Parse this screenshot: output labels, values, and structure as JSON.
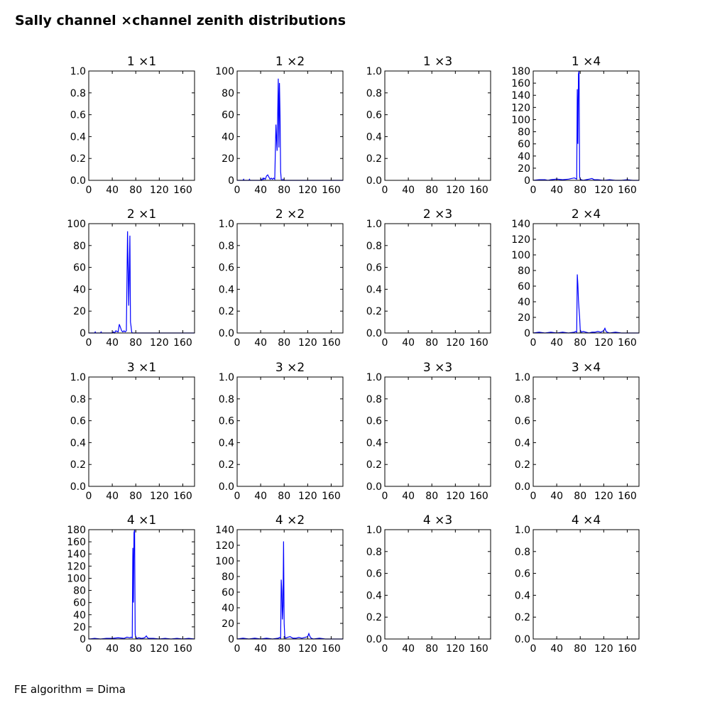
{
  "figure": {
    "title": "Sally channel ×channel zenith distributions",
    "footer": "FE algorithm = Dima",
    "line_color": "#0000ff"
  },
  "chart_data": [
    {
      "type": "line",
      "title": "1 ×1",
      "xlim": [
        0,
        180
      ],
      "ylim": [
        0,
        1.0
      ],
      "xticks": [
        "0",
        "40",
        "80",
        "120",
        "160"
      ],
      "yticks": [
        "0.0",
        "0.2",
        "0.4",
        "0.6",
        "0.8",
        "1.0"
      ],
      "series": [
        {
          "x": [],
          "y": []
        }
      ]
    },
    {
      "type": "line",
      "title": "1 ×2",
      "xlim": [
        0,
        180
      ],
      "ylim": [
        0,
        100
      ],
      "xticks": [
        "0",
        "40",
        "80",
        "120",
        "160"
      ],
      "yticks": [
        "0",
        "20",
        "40",
        "60",
        "80",
        "100"
      ],
      "series": [
        {
          "x": [
            0,
            10,
            11,
            12,
            20,
            21,
            22,
            30,
            40,
            41,
            42,
            44,
            45,
            46,
            48,
            50,
            52,
            54,
            56,
            58,
            60,
            62,
            64,
            66,
            68,
            70,
            71,
            72,
            73,
            74,
            75,
            76,
            77,
            78,
            79,
            80,
            81,
            82,
            83,
            84,
            86,
            90,
            100,
            102,
            104,
            110,
            120,
            130,
            140,
            150,
            160,
            170,
            180
          ],
          "y": [
            0,
            0,
            1,
            0,
            0,
            1,
            0,
            0,
            0,
            1,
            0,
            2,
            1,
            2,
            1,
            4,
            5,
            3,
            1,
            2,
            1,
            2,
            1,
            51,
            27,
            93,
            30,
            89,
            60,
            8,
            1,
            0,
            0,
            1,
            0,
            0,
            0,
            0,
            0,
            0,
            0,
            0,
            0,
            0,
            0,
            0,
            0,
            0,
            0,
            0,
            0,
            0,
            0
          ]
        }
      ]
    },
    {
      "type": "line",
      "title": "1 ×3",
      "xlim": [
        0,
        180
      ],
      "ylim": [
        0,
        1.0
      ],
      "xticks": [
        "0",
        "40",
        "80",
        "120",
        "160"
      ],
      "yticks": [
        "0.0",
        "0.2",
        "0.4",
        "0.6",
        "0.8",
        "1.0"
      ],
      "series": [
        {
          "x": [],
          "y": []
        }
      ]
    },
    {
      "type": "line",
      "title": "1 ×4",
      "xlim": [
        0,
        180
      ],
      "ylim": [
        0,
        180
      ],
      "xticks": [
        "0",
        "40",
        "80",
        "120",
        "160"
      ],
      "yticks": [
        "0",
        "20",
        "40",
        "60",
        "80",
        "100",
        "120",
        "140",
        "160",
        "180"
      ],
      "series": [
        {
          "x": [
            0,
            10,
            20,
            25,
            30,
            40,
            50,
            60,
            65,
            70,
            72,
            74,
            75,
            76,
            77,
            78,
            79,
            80,
            82,
            85,
            90,
            95,
            100,
            102,
            104,
            110,
            120,
            130,
            140,
            150,
            160,
            170,
            180
          ],
          "y": [
            0,
            1,
            1,
            0,
            1,
            2,
            1,
            2,
            3,
            4,
            3,
            2,
            150,
            60,
            175,
            180,
            6,
            2,
            1,
            0,
            1,
            2,
            3,
            2,
            1,
            1,
            0,
            1,
            0,
            0,
            1,
            0,
            0
          ]
        }
      ]
    },
    {
      "type": "line",
      "title": "2 ×1",
      "xlim": [
        0,
        180
      ],
      "ylim": [
        0,
        100
      ],
      "xticks": [
        "0",
        "40",
        "80",
        "120",
        "160"
      ],
      "yticks": [
        "0",
        "20",
        "40",
        "60",
        "80",
        "100"
      ],
      "series": [
        {
          "x": [
            0,
            10,
            11,
            12,
            20,
            21,
            22,
            30,
            40,
            42,
            44,
            46,
            50,
            52,
            54,
            56,
            58,
            60,
            62,
            64,
            66,
            68,
            70,
            71,
            72,
            73,
            74,
            75,
            76,
            78,
            80,
            90,
            100,
            110,
            120,
            130,
            140,
            150,
            160,
            170,
            180
          ],
          "y": [
            0,
            0,
            1,
            0,
            0,
            1,
            0,
            0,
            0,
            1,
            0,
            2,
            1,
            8,
            5,
            2,
            1,
            2,
            1,
            2,
            93,
            25,
            89,
            10,
            6,
            1,
            0,
            0,
            0,
            0,
            0,
            0,
            0,
            0,
            0,
            0,
            0,
            0,
            0,
            0,
            0
          ]
        }
      ]
    },
    {
      "type": "line",
      "title": "2 ×2",
      "xlim": [
        0,
        180
      ],
      "ylim": [
        0,
        1.0
      ],
      "xticks": [
        "0",
        "40",
        "80",
        "120",
        "160"
      ],
      "yticks": [
        "0.0",
        "0.2",
        "0.4",
        "0.6",
        "0.8",
        "1.0"
      ],
      "series": [
        {
          "x": [],
          "y": []
        }
      ]
    },
    {
      "type": "line",
      "title": "2 ×3",
      "xlim": [
        0,
        180
      ],
      "ylim": [
        0,
        1.0
      ],
      "xticks": [
        "0",
        "40",
        "80",
        "120",
        "160"
      ],
      "yticks": [
        "0.0",
        "0.2",
        "0.4",
        "0.6",
        "0.8",
        "1.0"
      ],
      "series": [
        {
          "x": [],
          "y": []
        }
      ]
    },
    {
      "type": "line",
      "title": "2 ×4",
      "xlim": [
        0,
        180
      ],
      "ylim": [
        0,
        140
      ],
      "xticks": [
        "0",
        "40",
        "80",
        "120",
        "160"
      ],
      "yticks": [
        "0",
        "20",
        "40",
        "60",
        "80",
        "100",
        "120",
        "140"
      ],
      "series": [
        {
          "x": [
            0,
            10,
            20,
            30,
            40,
            50,
            60,
            70,
            72,
            74,
            75,
            76,
            77,
            78,
            79,
            80,
            82,
            85,
            90,
            95,
            100,
            105,
            110,
            115,
            120,
            122,
            124,
            126,
            130,
            140,
            150,
            160,
            170,
            180
          ],
          "y": [
            0,
            1,
            0,
            1,
            0,
            1,
            0,
            1,
            2,
            1,
            75,
            62,
            42,
            30,
            20,
            4,
            1,
            2,
            1,
            0,
            1,
            1,
            2,
            1,
            3,
            6,
            2,
            1,
            0,
            1,
            0,
            0,
            0,
            0
          ]
        }
      ]
    },
    {
      "type": "line",
      "title": "3 ×1",
      "xlim": [
        0,
        180
      ],
      "ylim": [
        0,
        1.0
      ],
      "xticks": [
        "0",
        "40",
        "80",
        "120",
        "160"
      ],
      "yticks": [
        "0.0",
        "0.2",
        "0.4",
        "0.6",
        "0.8",
        "1.0"
      ],
      "series": [
        {
          "x": [],
          "y": []
        }
      ]
    },
    {
      "type": "line",
      "title": "3 ×2",
      "xlim": [
        0,
        180
      ],
      "ylim": [
        0,
        1.0
      ],
      "xticks": [
        "0",
        "40",
        "80",
        "120",
        "160"
      ],
      "yticks": [
        "0.0",
        "0.2",
        "0.4",
        "0.6",
        "0.8",
        "1.0"
      ],
      "series": [
        {
          "x": [],
          "y": []
        }
      ]
    },
    {
      "type": "line",
      "title": "3 ×3",
      "xlim": [
        0,
        180
      ],
      "ylim": [
        0,
        1.0
      ],
      "xticks": [
        "0",
        "40",
        "80",
        "120",
        "160"
      ],
      "yticks": [
        "0.0",
        "0.2",
        "0.4",
        "0.6",
        "0.8",
        "1.0"
      ],
      "series": [
        {
          "x": [],
          "y": []
        }
      ]
    },
    {
      "type": "line",
      "title": "3 ×4",
      "xlim": [
        0,
        180
      ],
      "ylim": [
        0,
        1.0
      ],
      "xticks": [
        "0",
        "40",
        "80",
        "120",
        "160"
      ],
      "yticks": [
        "0.0",
        "0.2",
        "0.4",
        "0.6",
        "0.8",
        "1.0"
      ],
      "series": [
        {
          "x": [],
          "y": []
        }
      ]
    },
    {
      "type": "line",
      "title": "4 ×1",
      "xlim": [
        0,
        180
      ],
      "ylim": [
        0,
        180
      ],
      "xticks": [
        "0",
        "40",
        "80",
        "120",
        "160"
      ],
      "yticks": [
        "0",
        "20",
        "40",
        "60",
        "80",
        "100",
        "120",
        "140",
        "160",
        "180"
      ],
      "series": [
        {
          "x": [
            0,
            10,
            20,
            30,
            40,
            50,
            60,
            65,
            70,
            72,
            74,
            75,
            76,
            77,
            78,
            79,
            80,
            82,
            85,
            90,
            95,
            98,
            100,
            102,
            110,
            120,
            130,
            140,
            150,
            160,
            170,
            180
          ],
          "y": [
            0,
            1,
            0,
            1,
            1,
            2,
            1,
            3,
            2,
            3,
            2,
            150,
            60,
            175,
            180,
            8,
            3,
            1,
            2,
            1,
            2,
            5,
            2,
            1,
            1,
            0,
            1,
            0,
            1,
            0,
            1,
            0
          ]
        }
      ]
    },
    {
      "type": "line",
      "title": "4 ×2",
      "xlim": [
        0,
        180
      ],
      "ylim": [
        0,
        140
      ],
      "xticks": [
        "0",
        "40",
        "80",
        "120",
        "160"
      ],
      "yticks": [
        "0",
        "20",
        "40",
        "60",
        "80",
        "100",
        "120",
        "140"
      ],
      "series": [
        {
          "x": [
            0,
            10,
            20,
            30,
            40,
            50,
            60,
            70,
            72,
            74,
            75,
            76,
            77,
            78,
            79,
            80,
            81,
            82,
            85,
            90,
            95,
            100,
            105,
            110,
            115,
            120,
            122,
            124,
            126,
            130,
            140,
            150,
            160,
            170,
            180
          ],
          "y": [
            0,
            1,
            0,
            1,
            0,
            1,
            0,
            1,
            2,
            1,
            76,
            62,
            25,
            42,
            125,
            20,
            4,
            1,
            2,
            3,
            1,
            1,
            2,
            1,
            2,
            3,
            7,
            3,
            1,
            0,
            1,
            0,
            0,
            0,
            0
          ]
        }
      ]
    },
    {
      "type": "line",
      "title": "4 ×3",
      "xlim": [
        0,
        180
      ],
      "ylim": [
        0,
        1.0
      ],
      "xticks": [
        "0",
        "40",
        "80",
        "120",
        "160"
      ],
      "yticks": [
        "0.0",
        "0.2",
        "0.4",
        "0.6",
        "0.8",
        "1.0"
      ],
      "series": [
        {
          "x": [],
          "y": []
        }
      ]
    },
    {
      "type": "line",
      "title": "4 ×4",
      "xlim": [
        0,
        180
      ],
      "ylim": [
        0,
        1.0
      ],
      "xticks": [
        "0",
        "40",
        "80",
        "120",
        "160"
      ],
      "yticks": [
        "0.0",
        "0.2",
        "0.4",
        "0.6",
        "0.8",
        "1.0"
      ],
      "series": [
        {
          "x": [],
          "y": []
        }
      ]
    }
  ]
}
